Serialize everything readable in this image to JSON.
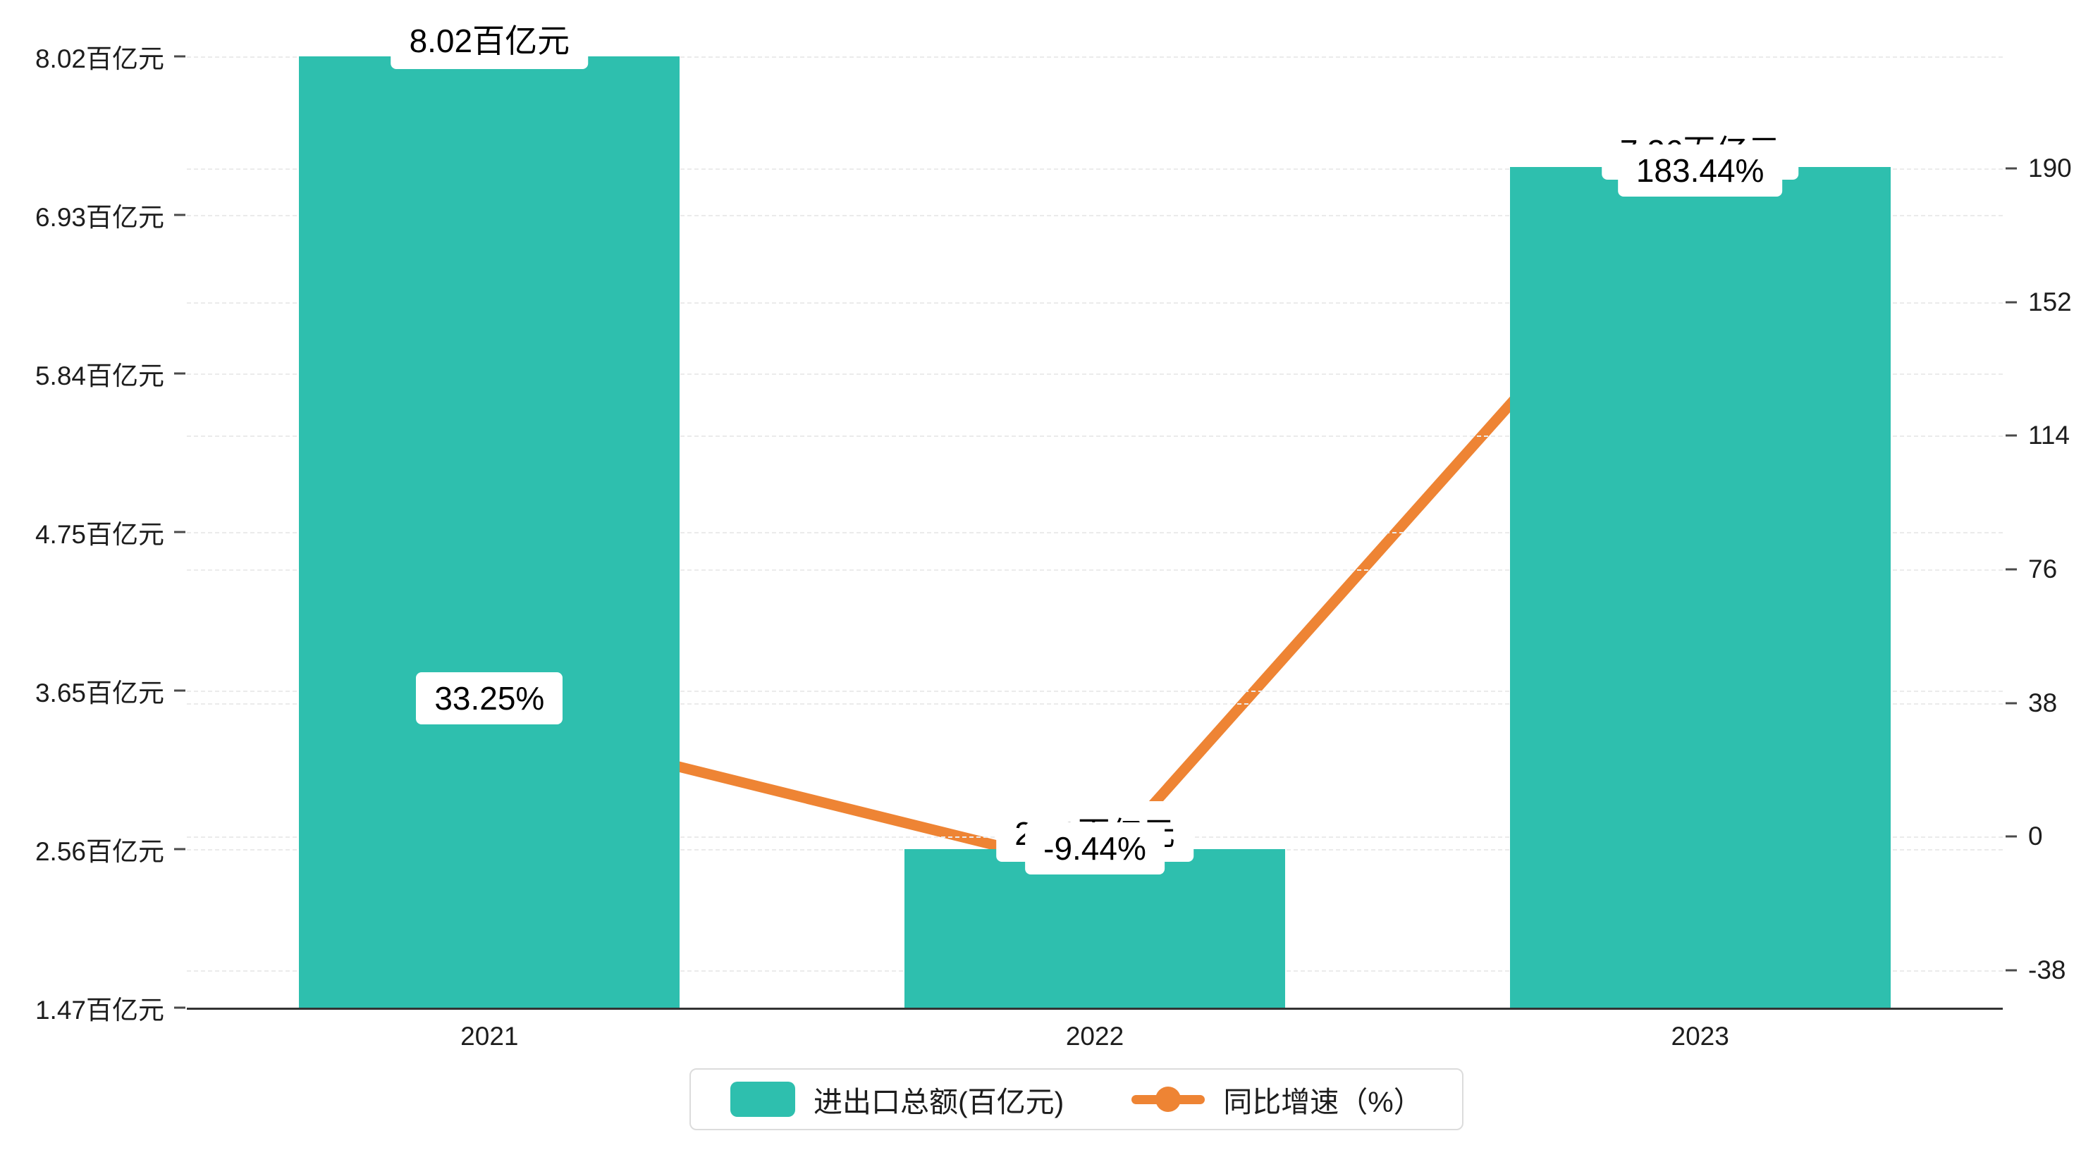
{
  "chart_data": {
    "type": "bar+line",
    "categories": [
      "2021",
      "2022",
      "2023"
    ],
    "series": [
      {
        "name": "进出口总额(百亿元)",
        "type": "bar",
        "values": [
          8.02,
          2.56,
          7.26
        ],
        "labels": [
          "8.02百亿元",
          "2.56百亿元",
          "7.26百亿元"
        ],
        "color": "#2EBFAE"
      },
      {
        "name": "同比增速（%）",
        "type": "line",
        "values": [
          33.25,
          -9.44,
          183.44
        ],
        "labels": [
          "33.25%",
          "-9.44%",
          "183.44%"
        ],
        "color": "#EE8434"
      }
    ],
    "left_axis": {
      "ticks": [
        "8.02百亿元",
        "6.93百亿元",
        "5.84百亿元",
        "4.75百亿元",
        "3.65百亿元",
        "2.56百亿元",
        "1.47百亿元"
      ],
      "min": 1.47,
      "max": 8.02
    },
    "right_axis": {
      "ticks": [
        "190",
        "152",
        "114",
        "76",
        "38",
        "0",
        "-38"
      ],
      "min": -38,
      "max": 190
    },
    "legend": [
      "进出口总额(百亿元)",
      "同比增速（%）"
    ],
    "grid": "dashed",
    "legend_position": "bottom-center"
  }
}
